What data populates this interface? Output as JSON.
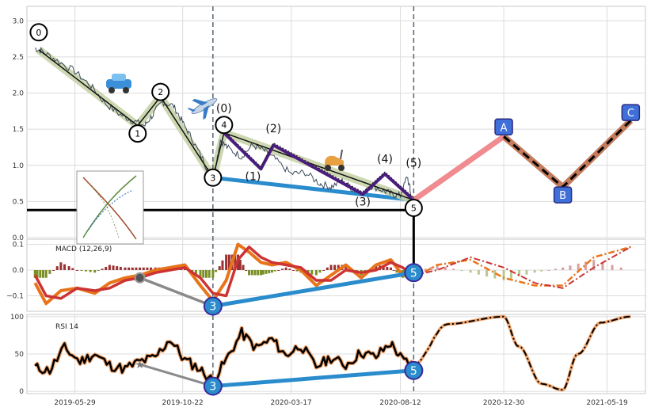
{
  "colors": {
    "price": "#3d4a5c",
    "trend_fill": "#c8d3a9",
    "wave_main": "#111111",
    "wave_sub": "#4b1c80",
    "support": "#2a8ccc",
    "proj_pink": "#f08c90",
    "proj_brown": "#c47c5c",
    "proj_box": "#3f6fd8",
    "macd_line": "#e8741a",
    "macd_signal": "#cc3433",
    "hist_pos": "#9b3131",
    "hist_neg": "#7a8f25",
    "rsi_outline": "#f0a46c",
    "grid": "#dcdcdc",
    "dashed": "#556575"
  },
  "chart_data": [
    {
      "type": "line",
      "panel": "price",
      "ylim": [
        0,
        3.2
      ],
      "yticks": [
        "0.0",
        "0.5",
        "1.0",
        "1.5",
        "2.0",
        "2.5",
        "3.0"
      ],
      "x_ticks": [
        "2019-05-29",
        "2019-10-22",
        "2020-03-17",
        "2020-08-12",
        "2020-12-30",
        "2021-05-19"
      ],
      "xlim": [
        "2019-03-25",
        "2021-07-10"
      ],
      "series": [
        {
          "role": "price",
          "x": [
            "2019-04-05",
            "2019-04-15",
            "2019-05-05",
            "2019-05-29",
            "2019-06-20",
            "2019-07-10",
            "2019-07-30",
            "2019-08-15",
            "2019-09-01",
            "2019-09-12",
            "2019-09-25",
            "2019-10-10",
            "2019-10-22",
            "2019-11-05",
            "2019-11-20",
            "2019-11-28",
            "2019-12-05",
            "2019-12-12",
            "2019-12-25",
            "2020-01-10",
            "2020-01-25",
            "2020-02-10",
            "2020-02-25",
            "2020-03-17",
            "2020-04-05",
            "2020-04-25",
            "2020-05-10",
            "2020-05-25",
            "2020-06-10",
            "2020-06-25",
            "2020-07-05",
            "2020-07-20",
            "2020-08-01",
            "2020-08-12",
            "2020-08-22",
            "2020-08-28"
          ],
          "y": [
            2.62,
            2.58,
            2.45,
            2.3,
            2.1,
            1.85,
            1.7,
            1.62,
            1.55,
            1.7,
            1.88,
            1.82,
            1.6,
            1.35,
            1.05,
            0.85,
            0.9,
            1.35,
            1.22,
            1.12,
            1.28,
            1.2,
            1.08,
            0.88,
            0.9,
            0.75,
            0.7,
            0.78,
            0.66,
            0.62,
            0.72,
            0.65,
            0.6,
            0.58,
            0.85,
            0.52
          ]
        }
      ],
      "waves_main": {
        "x": [
          "2019-04-10",
          "2019-08-22",
          "2019-09-22",
          "2019-12-02",
          "2019-12-17",
          "2020-08-30"
        ],
        "y": [
          2.6,
          1.55,
          1.95,
          0.83,
          1.45,
          0.52
        ],
        "labels": [
          "0",
          "1",
          "2",
          "3",
          "4",
          "5"
        ]
      },
      "waves_sub": {
        "x": [
          "2019-12-17",
          "2020-02-05",
          "2020-02-22",
          "2020-06-22",
          "2020-07-22",
          "2020-08-30"
        ],
        "y": [
          1.45,
          0.95,
          1.28,
          0.6,
          0.88,
          0.52
        ],
        "labels": [
          "(0)",
          "(1)",
          "(2)",
          "(3)",
          "(4)",
          "(5)"
        ]
      },
      "support_line": {
        "x": [
          "2019-12-02",
          "2020-08-30"
        ],
        "y": [
          0.83,
          0.52
        ]
      },
      "horizontal_line": {
        "x": [
          "2019-03-25",
          "2020-08-30"
        ],
        "y": [
          0.38,
          0.38
        ]
      },
      "projection_pink": {
        "x": [
          "2020-08-30",
          "2020-12-30"
        ],
        "y": [
          0.52,
          1.4
        ]
      },
      "projection": {
        "x": [
          "2020-12-30",
          "2021-03-20",
          "2021-06-20"
        ],
        "y": [
          1.4,
          0.7,
          1.62
        ],
        "labels": [
          "A",
          "B",
          "C"
        ]
      },
      "vlines": [
        "2019-12-02",
        "2020-08-30"
      ]
    },
    {
      "type": "line",
      "panel": "macd",
      "title": "MACD (12,26,9)",
      "ylim": [
        -0.16,
        0.12
      ],
      "yticks": [
        "0.1",
        "0.0",
        "−0.1"
      ],
      "x": [
        "2019-04-05",
        "2019-04-20",
        "2019-05-10",
        "2019-06-01",
        "2019-06-25",
        "2019-07-15",
        "2019-08-05",
        "2019-08-25",
        "2019-09-15",
        "2019-10-05",
        "2019-10-25",
        "2019-11-15",
        "2019-12-02",
        "2019-12-20",
        "2020-01-05",
        "2020-01-20",
        "2020-02-05",
        "2020-02-20",
        "2020-03-10",
        "2020-03-30",
        "2020-04-20",
        "2020-05-10",
        "2020-05-30",
        "2020-06-20",
        "2020-07-10",
        "2020-07-30",
        "2020-08-15",
        "2020-08-30"
      ],
      "series": [
        {
          "name": "macd",
          "values": [
            -0.05,
            -0.13,
            -0.08,
            -0.07,
            -0.09,
            -0.05,
            -0.03,
            -0.02,
            0.0,
            0.01,
            0.02,
            -0.06,
            -0.12,
            -0.04,
            0.1,
            0.07,
            0.03,
            0.02,
            0.03,
            0.0,
            -0.06,
            -0.02,
            0.02,
            -0.03,
            0.02,
            0.04,
            -0.02,
            -0.03
          ]
        },
        {
          "name": "signal",
          "values": [
            -0.02,
            -0.1,
            -0.11,
            -0.07,
            -0.08,
            -0.07,
            -0.04,
            -0.03,
            -0.01,
            0.0,
            0.01,
            -0.03,
            -0.09,
            -0.1,
            0.04,
            0.09,
            0.05,
            0.03,
            0.02,
            0.01,
            -0.04,
            -0.04,
            0.0,
            -0.01,
            0.0,
            0.03,
            0.01,
            -0.02
          ]
        }
      ],
      "projection_x": [
        "2020-08-30",
        "2020-10-01",
        "2020-11-15",
        "2020-12-30",
        "2021-02-10",
        "2021-03-20",
        "2021-05-01",
        "2021-06-20"
      ],
      "projection_macd": [
        -0.03,
        0.02,
        0.04,
        -0.03,
        -0.06,
        -0.06,
        0.05,
        0.09
      ],
      "projection_signal": [
        -0.02,
        0.0,
        0.05,
        0.01,
        -0.05,
        -0.07,
        0.01,
        0.09
      ],
      "wave3_point": {
        "x": "2019-12-02",
        "y": -0.14,
        "label": "3"
      },
      "wave5_point": {
        "x": "2020-08-30",
        "y": -0.01,
        "label": "5"
      },
      "marker_point": {
        "x": "2019-08-25",
        "y": -0.03
      }
    },
    {
      "type": "line",
      "panel": "rsi",
      "title": "RSI 14",
      "ylim": [
        -3,
        103
      ],
      "yticks": [
        "100",
        "50",
        "0"
      ],
      "x": [
        "2019-04-05",
        "2019-04-25",
        "2019-05-15",
        "2019-06-05",
        "2019-06-25",
        "2019-07-15",
        "2019-08-05",
        "2019-08-25",
        "2019-09-15",
        "2019-10-05",
        "2019-10-25",
        "2019-11-15",
        "2019-12-02",
        "2019-12-20",
        "2020-01-10",
        "2020-01-30",
        "2020-02-20",
        "2020-03-10",
        "2020-03-30",
        "2020-04-20",
        "2020-05-10",
        "2020-05-30",
        "2020-06-20",
        "2020-07-10",
        "2020-07-30",
        "2020-08-15",
        "2020-08-30"
      ],
      "values": [
        32,
        28,
        58,
        40,
        50,
        35,
        30,
        40,
        45,
        70,
        42,
        30,
        14,
        42,
        78,
        58,
        70,
        48,
        62,
        33,
        45,
        35,
        52,
        46,
        65,
        42,
        35
      ],
      "projection_x": [
        "2020-08-30",
        "2020-10-15",
        "2020-12-30",
        "2021-01-20",
        "2021-02-20",
        "2021-03-20",
        "2021-04-10",
        "2021-05-10",
        "2021-06-20"
      ],
      "projection_values": [
        35,
        90,
        100,
        60,
        10,
        2,
        50,
        92,
        100
      ],
      "wave3_point": {
        "x": "2019-12-02",
        "y": 7,
        "label": "3"
      },
      "wave5_point": {
        "x": "2020-08-30",
        "y": 28,
        "label": "5"
      },
      "marker_point": {
        "x": "2019-08-25",
        "y": 36
      }
    }
  ]
}
